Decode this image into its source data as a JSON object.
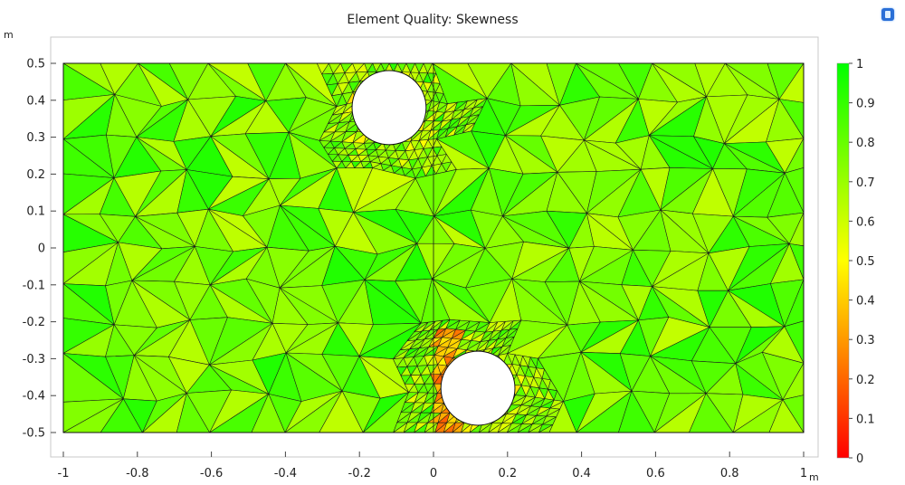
{
  "chart_data": {
    "type": "heatmap",
    "title": "Element Quality: Skewness",
    "xunit": "m",
    "yunit": "m",
    "xlim": [
      -1,
      1
    ],
    "ylim": [
      -0.5,
      0.5
    ],
    "xticks": [
      -1,
      -0.8,
      -0.6,
      -0.4,
      -0.2,
      0,
      0.2,
      0.4,
      0.6,
      0.8,
      1
    ],
    "yticks": [
      0.5,
      0.4,
      0.3,
      0.2,
      0.1,
      0,
      -0.1,
      -0.2,
      -0.3,
      -0.4,
      -0.5
    ],
    "colorbar": {
      "range": [
        0,
        1
      ],
      "ticks": [
        1,
        0.9,
        0.8,
        0.7,
        0.6,
        0.5,
        0.4,
        0.3,
        0.2,
        0.1,
        0
      ],
      "colors": [
        "#ff0000",
        "#ff8000",
        "#ffff00",
        "#80ff00",
        "#00ff00"
      ]
    },
    "holes": [
      {
        "cx": -0.12,
        "cy": 0.38,
        "r": 0.1
      },
      {
        "cx": 0.12,
        "cy": -0.38,
        "r": 0.1
      }
    ],
    "divider_x": 0,
    "grid": false
  },
  "icons": {
    "app": "app-icon"
  }
}
